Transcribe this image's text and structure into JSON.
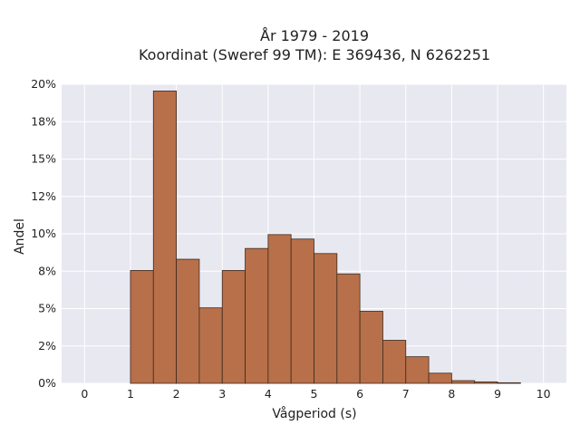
{
  "chart_data": {
    "type": "bar",
    "title_line1": "År 1979 - 2019",
    "title_line2": "Koordinat (Sweref 99 TM): E 369436, N 6262251",
    "xlabel": "Vågperiod (s)",
    "ylabel": "Andel",
    "xlim": [
      -0.5,
      10.5
    ],
    "ylim": [
      0,
      0.2
    ],
    "bin_width": 0.5,
    "bins": [
      {
        "start": 1.0,
        "value": 0.0755
      },
      {
        "start": 1.5,
        "value": 0.1955
      },
      {
        "start": 2.0,
        "value": 0.083
      },
      {
        "start": 2.5,
        "value": 0.0505
      },
      {
        "start": 3.0,
        "value": 0.0755
      },
      {
        "start": 3.5,
        "value": 0.0902
      },
      {
        "start": 4.0,
        "value": 0.0995
      },
      {
        "start": 4.5,
        "value": 0.0965
      },
      {
        "start": 5.0,
        "value": 0.0868
      },
      {
        "start": 5.5,
        "value": 0.0732
      },
      {
        "start": 6.0,
        "value": 0.0482
      },
      {
        "start": 6.5,
        "value": 0.0288
      },
      {
        "start": 7.0,
        "value": 0.0178
      },
      {
        "start": 7.5,
        "value": 0.0068
      },
      {
        "start": 8.0,
        "value": 0.0018
      },
      {
        "start": 8.5,
        "value": 0.001
      },
      {
        "start": 9.0,
        "value": 0.0004
      }
    ],
    "x_ticks": [
      "0",
      "1",
      "2",
      "3",
      "4",
      "5",
      "6",
      "7",
      "8",
      "9",
      "10"
    ],
    "x_tick_values": [
      0,
      1,
      2,
      3,
      4,
      5,
      6,
      7,
      8,
      9,
      10
    ],
    "y_ticks": [
      "0%",
      "2%",
      "5%",
      "8%",
      "10%",
      "12%",
      "15%",
      "18%",
      "20%"
    ],
    "y_tick_values": [
      0,
      0.025,
      0.05,
      0.075,
      0.1,
      0.125,
      0.15,
      0.175,
      0.2
    ],
    "grid": true,
    "colors": {
      "bar_fill": "#b8704a",
      "bar_stroke": "#3d2a1e",
      "plot_background": "#e8e8f1",
      "grid": "#ffffff"
    }
  }
}
